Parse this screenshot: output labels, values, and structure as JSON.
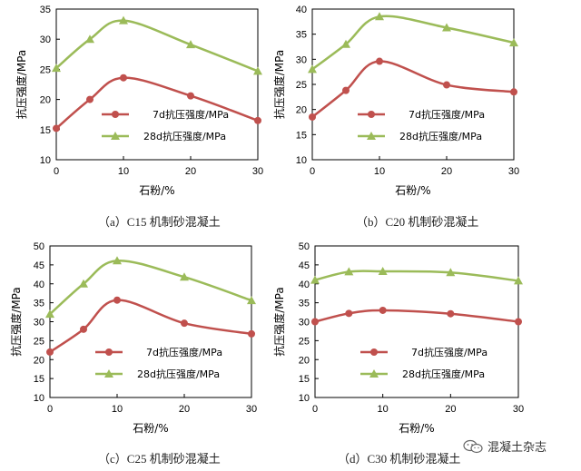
{
  "panels": [
    {
      "caption": "（a）C15 机制砂混凝土",
      "chart_data": {
        "type": "line",
        "xlabel": "石粉/%",
        "ylabel": "抗压强度/MPa",
        "xlim": [
          0,
          30
        ],
        "xticks": [
          0,
          10,
          20,
          30
        ],
        "ylim": [
          10,
          35
        ],
        "yticks": [
          10,
          15,
          20,
          25,
          30,
          35
        ],
        "x": [
          0,
          5,
          10,
          20,
          30
        ],
        "series": [
          {
            "name": "7d抗压强度/MPa",
            "marker": "circle",
            "color": "#c0504d",
            "values": [
              15.2,
              20.0,
              23.6,
              20.6,
              16.5
            ]
          },
          {
            "name": "28d抗压强度/MPa",
            "marker": "triangle",
            "color": "#9bbb59",
            "values": [
              25.2,
              30.0,
              33.1,
              29.1,
              24.7
            ]
          }
        ],
        "legend": "bottom-center"
      }
    },
    {
      "caption": "（b）C20 机制砂混凝土",
      "chart_data": {
        "type": "line",
        "xlabel": "石粉/%",
        "ylabel": "抗压强度/MPa",
        "xlim": [
          0,
          30
        ],
        "xticks": [
          0,
          10,
          20,
          30
        ],
        "ylim": [
          10,
          40
        ],
        "yticks": [
          10,
          15,
          20,
          25,
          30,
          35,
          40
        ],
        "x": [
          0,
          5,
          10,
          20,
          30
        ],
        "series": [
          {
            "name": "7d抗压强度/MPa",
            "marker": "circle",
            "color": "#c0504d",
            "values": [
              18.5,
              23.8,
              29.6,
              24.9,
              23.5
            ]
          },
          {
            "name": "28d抗压强度/MPa",
            "marker": "triangle",
            "color": "#9bbb59",
            "values": [
              28.0,
              33.0,
              38.5,
              36.3,
              33.3
            ]
          }
        ],
        "legend": "bottom-center"
      }
    },
    {
      "caption": "（c）C25 机制砂混凝土",
      "chart_data": {
        "type": "line",
        "xlabel": "石粉/%",
        "ylabel": "抗压强度/MPa",
        "xlim": [
          0,
          30
        ],
        "xticks": [
          0,
          10,
          20,
          30
        ],
        "ylim": [
          10,
          50
        ],
        "yticks": [
          10,
          15,
          20,
          25,
          30,
          35,
          40,
          45,
          50
        ],
        "x": [
          0,
          5,
          10,
          20,
          30
        ],
        "series": [
          {
            "name": "7d抗压强度/MPa",
            "marker": "circle",
            "color": "#c0504d",
            "values": [
              22.0,
              28.0,
              35.7,
              29.6,
              26.8
            ]
          },
          {
            "name": "28d抗压强度/MPa",
            "marker": "triangle",
            "color": "#9bbb59",
            "values": [
              32.0,
              40.0,
              46.1,
              41.8,
              35.6
            ]
          }
        ],
        "legend": "bottom-center"
      }
    },
    {
      "caption": "（d）C30 机制砂混凝土",
      "chart_data": {
        "type": "line",
        "xlabel": "石粉/%",
        "ylabel": "抗压强度/MPa",
        "xlim": [
          0,
          30
        ],
        "xticks": [
          0,
          10,
          20,
          30
        ],
        "ylim": [
          10,
          50
        ],
        "yticks": [
          10,
          15,
          20,
          25,
          30,
          35,
          40,
          45,
          50
        ],
        "x": [
          0,
          5,
          10,
          20,
          30
        ],
        "series": [
          {
            "name": "7d抗压强度/MPa",
            "marker": "circle",
            "color": "#c0504d",
            "values": [
              30.0,
              32.2,
              33.0,
              32.1,
              30.0
            ]
          },
          {
            "name": "28d抗压强度/MPa",
            "marker": "triangle",
            "color": "#9bbb59",
            "values": [
              41.0,
              43.2,
              43.3,
              43.0,
              40.8
            ]
          }
        ],
        "legend": "bottom-center"
      }
    }
  ],
  "watermark": {
    "text": "混凝土杂志",
    "icon": "wechat-icon"
  }
}
